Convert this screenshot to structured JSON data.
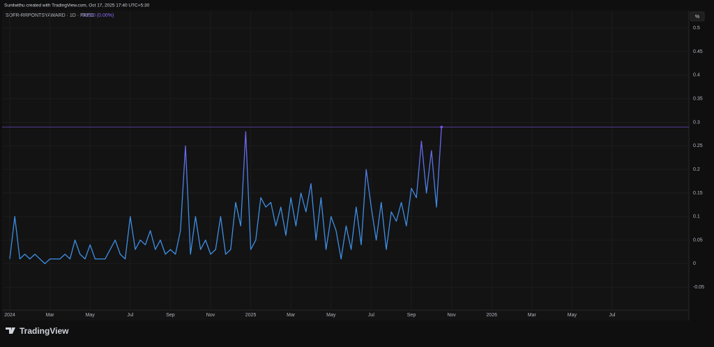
{
  "header": "Sunilwithu created with TradingView.com, Oct 17, 2025 17:40 UTC+5:30",
  "footer_brand": "TradingView",
  "chart_data": {
    "type": "line",
    "title": "SOFR-RRPONTSYAWARD · 1D · FRED",
    "change_label": "0 (0.00%)",
    "unit": "%",
    "categories": [
      "2024",
      null,
      null,
      null,
      null,
      null,
      null,
      null,
      "Mar",
      null,
      null,
      null,
      null,
      null,
      null,
      null,
      "May",
      null,
      null,
      null,
      null,
      null,
      null,
      null,
      "Jul",
      null,
      null,
      null,
      null,
      null,
      null,
      null,
      "Sep",
      null,
      null,
      null,
      null,
      null,
      null,
      null,
      "Nov",
      null,
      null,
      null,
      null,
      null,
      null,
      null,
      "2025",
      null,
      null,
      null,
      null,
      null,
      null,
      null,
      "Mar",
      null,
      null,
      null,
      null,
      null,
      null,
      null,
      "May",
      null,
      null,
      null,
      null,
      null,
      null,
      null,
      "Jul",
      null,
      null,
      null,
      null,
      null,
      null,
      null,
      "Sep",
      null,
      null,
      null,
      null,
      null,
      null,
      null,
      "Nov",
      null,
      null,
      null,
      null,
      null,
      null,
      null,
      "2026",
      null,
      null,
      null,
      null,
      null,
      null,
      null,
      "Mar",
      null,
      null,
      null,
      null,
      null,
      null,
      null,
      "May",
      null,
      null,
      null,
      null,
      null,
      null,
      null,
      "Jul",
      null,
      null,
      null,
      null,
      null,
      null,
      null,
      null,
      null,
      null,
      null,
      null,
      null,
      null
    ],
    "values": [
      0.01,
      0.1,
      0.01,
      0.02,
      0.01,
      0.02,
      0.01,
      0.0,
      0.01,
      0.01,
      0.01,
      0.02,
      0.01,
      0.05,
      0.02,
      0.01,
      0.04,
      0.01,
      0.01,
      0.01,
      0.03,
      0.05,
      0.02,
      0.01,
      0.1,
      0.03,
      0.05,
      0.04,
      0.07,
      0.03,
      0.05,
      0.02,
      0.03,
      0.02,
      0.07,
      0.25,
      0.02,
      0.1,
      0.03,
      0.05,
      0.02,
      0.03,
      0.1,
      0.02,
      0.03,
      0.13,
      0.08,
      0.28,
      0.03,
      0.05,
      0.14,
      0.12,
      0.13,
      0.08,
      0.12,
      0.06,
      0.14,
      0.08,
      0.15,
      0.11,
      0.17,
      0.05,
      0.14,
      0.03,
      0.1,
      0.07,
      0.01,
      0.08,
      0.03,
      0.12,
      0.04,
      0.2,
      0.12,
      0.05,
      0.13,
      0.03,
      0.11,
      0.09,
      0.13,
      0.08,
      0.16,
      0.14,
      0.26,
      0.15,
      0.24,
      0.12,
      0.29,
      null,
      null,
      null,
      null,
      null,
      null,
      null,
      null,
      null,
      null,
      null,
      null,
      null,
      null,
      null,
      null,
      null,
      null,
      null,
      null,
      null,
      null,
      null,
      null,
      null,
      null,
      null,
      null,
      null,
      null,
      null,
      null,
      null,
      null,
      null,
      null,
      null,
      null,
      null,
      null,
      null,
      null,
      null,
      null,
      null,
      null,
      null,
      null
    ],
    "gradient": [
      "#3d8fe6",
      "#7b58f2"
    ],
    "ylim": [
      -0.1,
      0.53
    ],
    "yticks": [
      -0.05,
      0,
      0.05,
      0.1,
      0.15,
      0.2,
      0.25,
      0.3,
      0.35,
      0.4,
      0.45,
      0.5
    ],
    "grid": true
  }
}
